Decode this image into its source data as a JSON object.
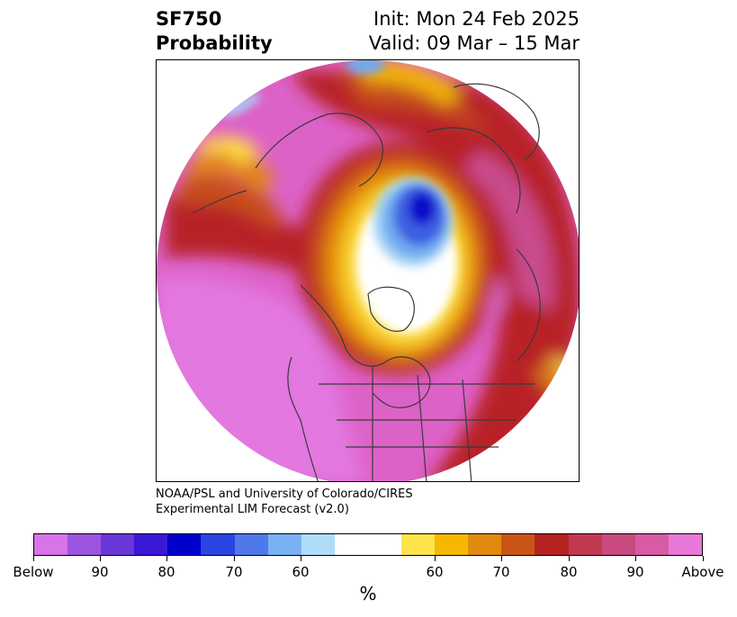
{
  "title": {
    "left_line1": "SF750",
    "left_line2": "Probability",
    "right_line1": "Init: Mon 24 Feb 2025",
    "right_line2": "Valid: 09 Mar – 15 Mar"
  },
  "credit": {
    "line1": "NOAA/PSL and University of Colorado/CIRES",
    "line2": "Experimental LIM Forecast (v2.0)"
  },
  "colorbar": {
    "colors": [
      "#d674e8",
      "#9b55e0",
      "#6a38d8",
      "#3a18d5",
      "#0000cc",
      "#2a45e0",
      "#4f78ea",
      "#78b2f2",
      "#afdcf8",
      "#ffffff",
      "#ffffff",
      "#ffe34a",
      "#f5b800",
      "#e08a10",
      "#c85515",
      "#b52222",
      "#c13a52",
      "#c84a7e",
      "#d85ba5",
      "#e878d8"
    ],
    "tick_labels": [
      "Below",
      "90",
      "80",
      "70",
      "60",
      "60",
      "70",
      "80",
      "90",
      "Above"
    ],
    "unit": "%"
  },
  "map": {
    "palette": {
      "pink": "#dd62c8",
      "magenta_dark": "#c94b8d",
      "violet": "#e278e0",
      "dark_red": "#b82228",
      "rust": "#c74e1a",
      "orange": "#e4870c",
      "gold": "#f3b700",
      "yellow": "#fde047",
      "light_blue": "#a5d4f7",
      "sky_blue": "#6fa9ef",
      "blue": "#3c5ee2",
      "deep_blue": "#0a10c8",
      "coast": "#3a3a3a"
    }
  }
}
